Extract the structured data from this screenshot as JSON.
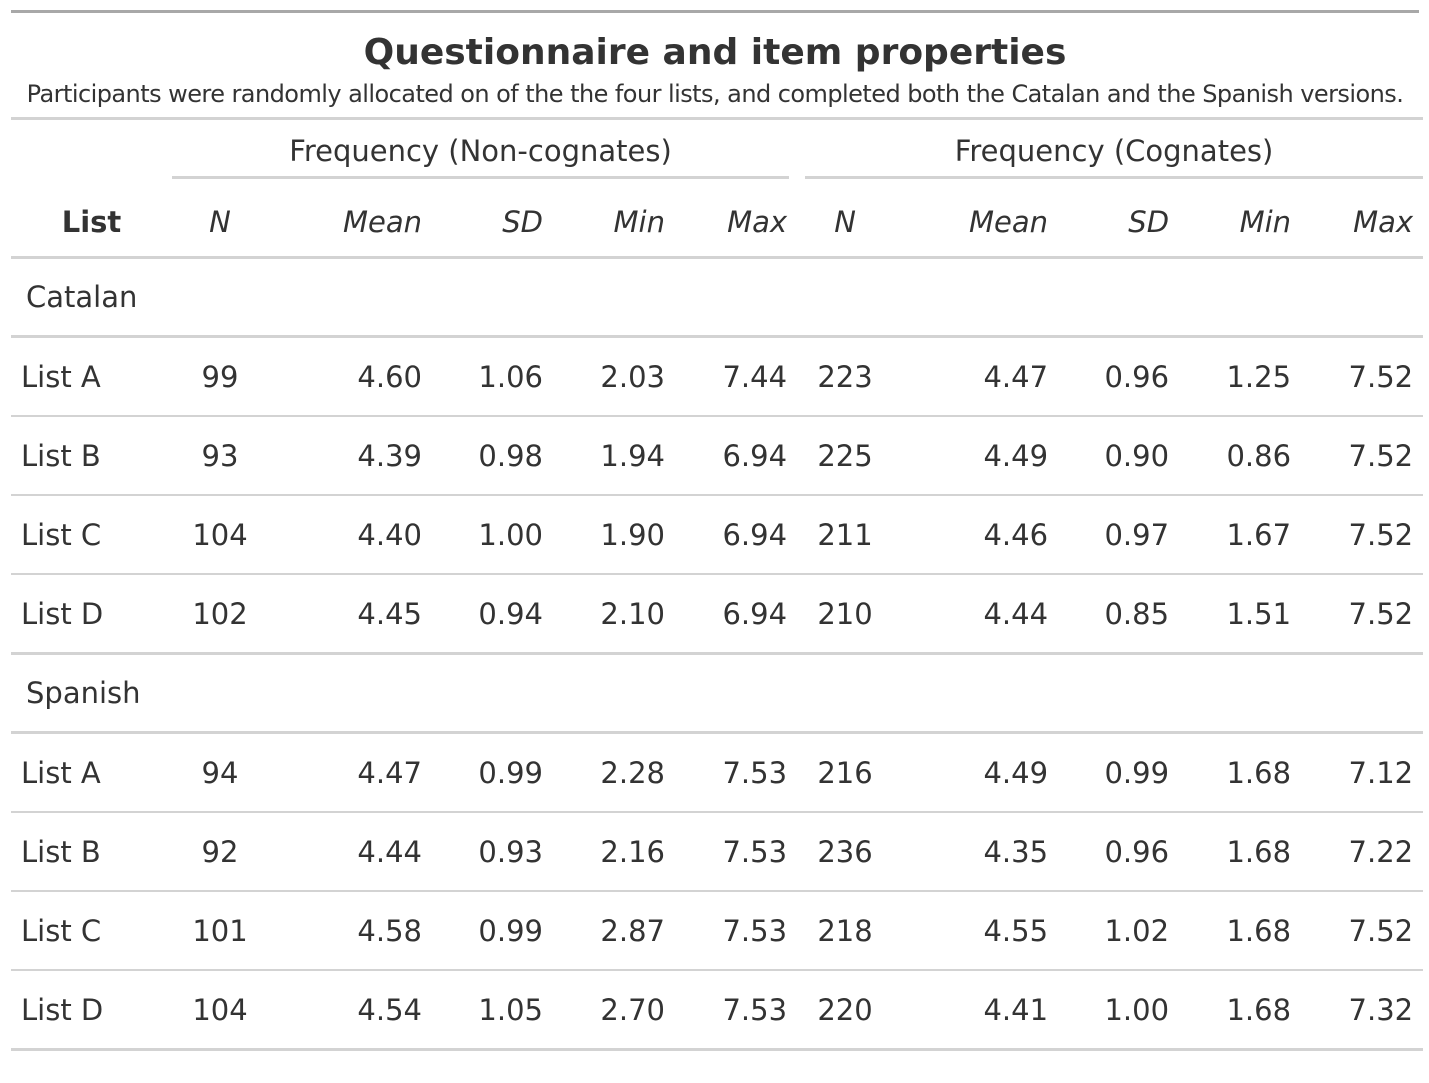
{
  "table": {
    "title": "Questionnaire and item properties",
    "subtitle": "Participants were randomly allocated on of the the four lists, and completed both the Catalan and the Spanish versions.",
    "spanners": [
      "Frequency (Non-cognates)",
      "Frequency (Cognates)"
    ],
    "columns": [
      "List",
      "N",
      "Mean",
      "SD",
      "Min",
      "Max",
      "N",
      "Mean",
      "SD",
      "Min",
      "Max"
    ],
    "groups": [
      {
        "label": "Catalan",
        "rows": [
          [
            "List A",
            "99",
            "4.60",
            "1.06",
            "2.03",
            "7.44",
            "223",
            "4.47",
            "0.96",
            "1.25",
            "7.52"
          ],
          [
            "List B",
            "93",
            "4.39",
            "0.98",
            "1.94",
            "6.94",
            "225",
            "4.49",
            "0.90",
            "0.86",
            "7.52"
          ],
          [
            "List C",
            "104",
            "4.40",
            "1.00",
            "1.90",
            "6.94",
            "211",
            "4.46",
            "0.97",
            "1.67",
            "7.52"
          ],
          [
            "List D",
            "102",
            "4.45",
            "0.94",
            "2.10",
            "6.94",
            "210",
            "4.44",
            "0.85",
            "1.51",
            "7.52"
          ]
        ]
      },
      {
        "label": "Spanish",
        "rows": [
          [
            "List A",
            "94",
            "4.47",
            "0.99",
            "2.28",
            "7.53",
            "216",
            "4.49",
            "0.99",
            "1.68",
            "7.12"
          ],
          [
            "List B",
            "92",
            "4.44",
            "0.93",
            "2.16",
            "7.53",
            "236",
            "4.35",
            "0.96",
            "1.68",
            "7.22"
          ],
          [
            "List C",
            "101",
            "4.58",
            "0.99",
            "2.87",
            "7.53",
            "218",
            "4.55",
            "1.02",
            "1.68",
            "7.52"
          ],
          [
            "List D",
            "104",
            "4.54",
            "1.05",
            "2.70",
            "7.53",
            "220",
            "4.41",
            "1.00",
            "1.68",
            "7.32"
          ]
        ]
      }
    ]
  }
}
